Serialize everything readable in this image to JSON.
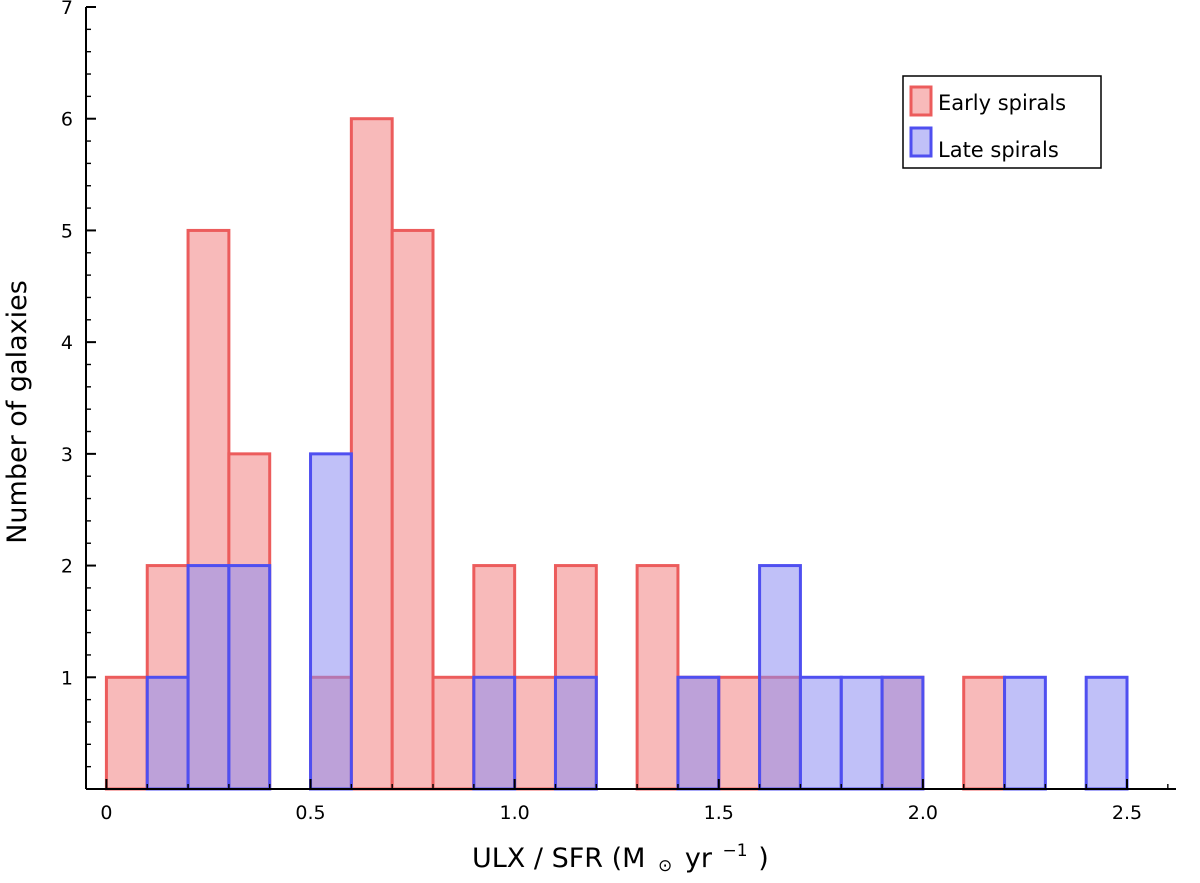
{
  "chart_data": {
    "type": "bar",
    "histogram": true,
    "bin_width": 0.1,
    "xlabel": "ULX / SFR (M",
    "xlabel_unit_sub": "⊙",
    "xlabel_unit": "yr",
    "xlabel_sup": "−1",
    "xlabel_close": ")",
    "ylabel": "Number of galaxies",
    "xlim": [
      -0.05,
      2.62
    ],
    "ylim": [
      0,
      7
    ],
    "xticks": [
      "0",
      "0.5",
      "1.0",
      "1.5",
      "2.0",
      "2.5"
    ],
    "yticks": [
      "1",
      "2",
      "3",
      "4",
      "5",
      "6",
      "7"
    ],
    "legend_position": "top-right",
    "series": [
      {
        "name": "Early spirals",
        "fill": "#f8baba",
        "stroke": "#ec5c5c",
        "bins": [
          {
            "x0": 0.0,
            "x1": 0.1,
            "value": 1
          },
          {
            "x0": 0.1,
            "x1": 0.2,
            "value": 2
          },
          {
            "x0": 0.2,
            "x1": 0.3,
            "value": 5
          },
          {
            "x0": 0.3,
            "x1": 0.4,
            "value": 3
          },
          {
            "x0": 0.5,
            "x1": 0.6,
            "value": 1
          },
          {
            "x0": 0.6,
            "x1": 0.7,
            "value": 6
          },
          {
            "x0": 0.7,
            "x1": 0.8,
            "value": 5
          },
          {
            "x0": 0.8,
            "x1": 0.9,
            "value": 1
          },
          {
            "x0": 0.9,
            "x1": 1.0,
            "value": 2
          },
          {
            "x0": 1.0,
            "x1": 1.1,
            "value": 1
          },
          {
            "x0": 1.1,
            "x1": 1.2,
            "value": 2
          },
          {
            "x0": 1.3,
            "x1": 1.4,
            "value": 2
          },
          {
            "x0": 1.4,
            "x1": 1.5,
            "value": 1
          },
          {
            "x0": 1.5,
            "x1": 1.6,
            "value": 1
          },
          {
            "x0": 1.6,
            "x1": 1.7,
            "value": 1
          },
          {
            "x0": 1.9,
            "x1": 2.0,
            "value": 1
          },
          {
            "x0": 2.1,
            "x1": 2.2,
            "value": 1
          }
        ]
      },
      {
        "name": "Late spirals",
        "fill": "#8c8cf2",
        "stroke": "#4f4ff0",
        "fill_opacity": 0.55,
        "bins": [
          {
            "x0": 0.1,
            "x1": 0.2,
            "value": 1
          },
          {
            "x0": 0.2,
            "x1": 0.3,
            "value": 2
          },
          {
            "x0": 0.3,
            "x1": 0.4,
            "value": 2
          },
          {
            "x0": 0.5,
            "x1": 0.6,
            "value": 3
          },
          {
            "x0": 0.9,
            "x1": 1.0,
            "value": 1
          },
          {
            "x0": 1.1,
            "x1": 1.2,
            "value": 1
          },
          {
            "x0": 1.4,
            "x1": 1.5,
            "value": 1
          },
          {
            "x0": 1.6,
            "x1": 1.7,
            "value": 2
          },
          {
            "x0": 1.7,
            "x1": 1.8,
            "value": 1
          },
          {
            "x0": 1.8,
            "x1": 1.9,
            "value": 1
          },
          {
            "x0": 1.9,
            "x1": 2.0,
            "value": 1
          },
          {
            "x0": 2.2,
            "x1": 2.3,
            "value": 1
          },
          {
            "x0": 2.4,
            "x1": 2.5,
            "value": 1
          }
        ]
      }
    ]
  }
}
